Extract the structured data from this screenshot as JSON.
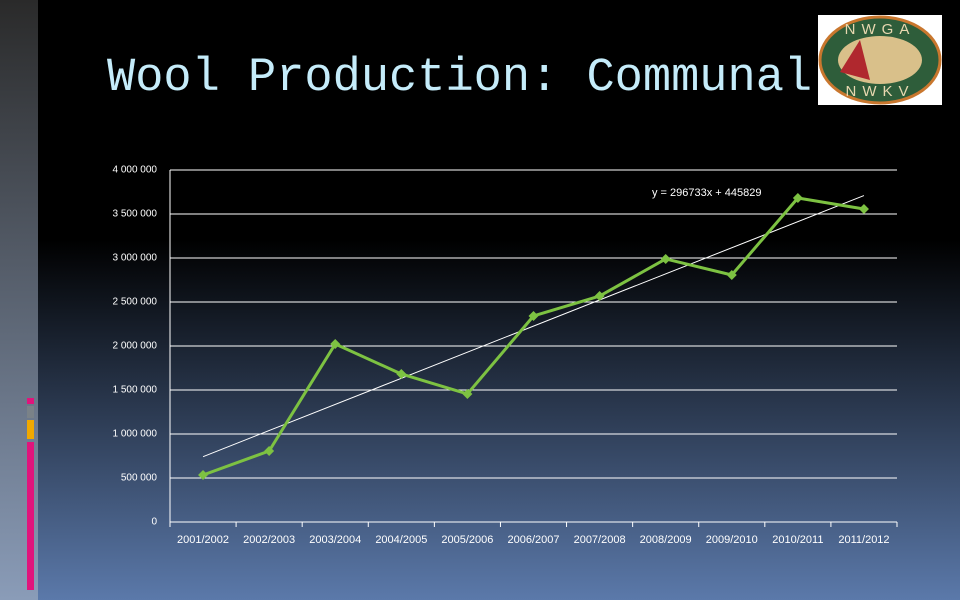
{
  "slide": {
    "title": "Wool Production: Communal",
    "logo": {
      "top": "NWGA",
      "bottom": "NWKV"
    }
  },
  "chart_data": {
    "type": "line",
    "categories": [
      "2001/2002",
      "2002/2003",
      "2003/2004",
      "2004/2005",
      "2005/2006",
      "2006/2007",
      "2007/2008",
      "2008/2009",
      "2009/2010",
      "2010/2011",
      "2011/2012"
    ],
    "values": [
      534000,
      807000,
      2023000,
      1682000,
      1455000,
      2341000,
      2568000,
      2989000,
      2807000,
      3682000,
      3557000
    ],
    "color": "#7dc242",
    "ylim": [
      0,
      4000000
    ],
    "yticks": [
      0,
      {
        "value": 500000,
        "label": "500 000"
      },
      {
        "value": 1000000,
        "label": "1 000 000"
      },
      {
        "value": 1500000,
        "label": "1 500 000"
      },
      {
        "value": 2000000,
        "label": "2 000 000"
      },
      {
        "value": 2500000,
        "label": "2 500 000"
      },
      {
        "value": 3000000,
        "label": "3 000 000"
      },
      {
        "value": 3500000,
        "label": "3 500 000"
      },
      {
        "value": 4000000,
        "label": "4 000 000"
      }
    ],
    "grid": true,
    "trendline": {
      "label": "y = 296733x + 445829",
      "slope": 296733,
      "intercept": 445829
    }
  }
}
